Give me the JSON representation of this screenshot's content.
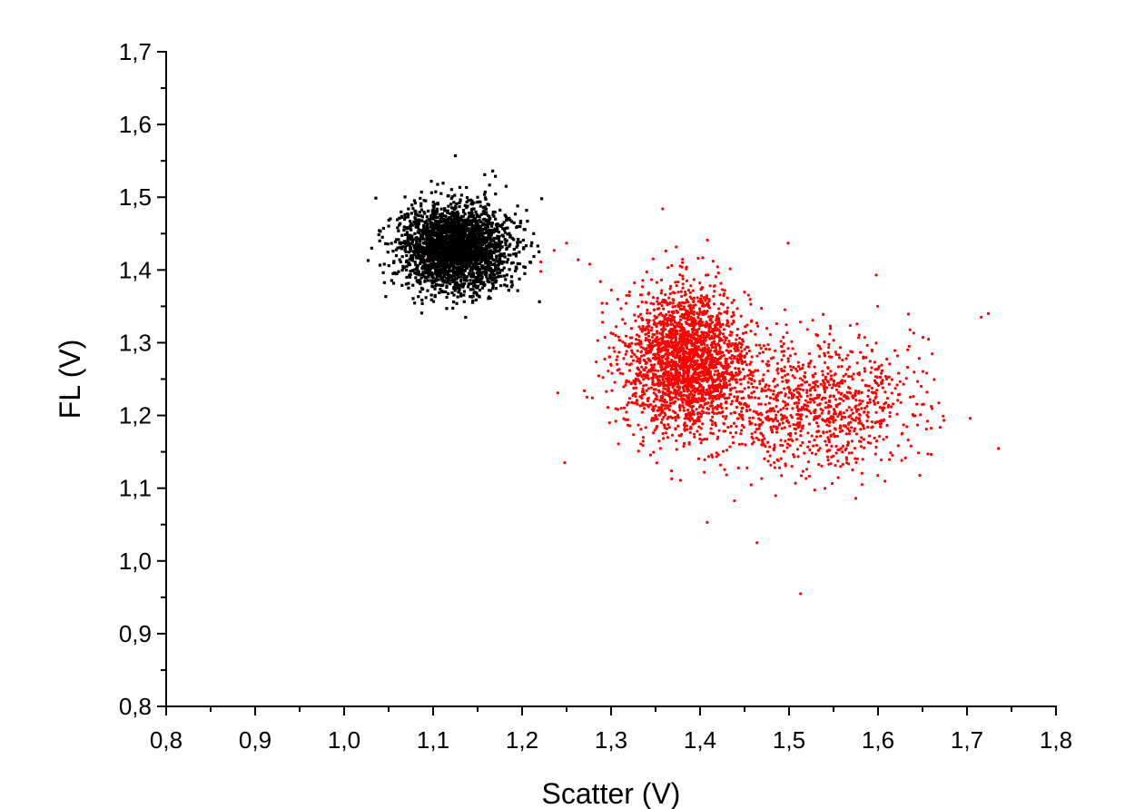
{
  "chart_data": {
    "type": "scatter",
    "title": "",
    "xlabel": "Scatter (V)",
    "ylabel": "FL (V)",
    "xlim": [
      0.8,
      1.8
    ],
    "ylim": [
      0.8,
      1.7
    ],
    "x_major_ticks": [
      0.8,
      0.9,
      1.0,
      1.1,
      1.2,
      1.3,
      1.4,
      1.5,
      1.6,
      1.7,
      1.8
    ],
    "x_tick_labels": [
      "0,8",
      "0,9",
      "1,0",
      "1,1",
      "1,2",
      "1,3",
      "1,4",
      "1,5",
      "1,6",
      "1,7",
      "1,8"
    ],
    "y_major_ticks": [
      0.8,
      0.9,
      1.0,
      1.1,
      1.2,
      1.3,
      1.4,
      1.5,
      1.6,
      1.7
    ],
    "y_tick_labels": [
      "0,8",
      "0,9",
      "1,0",
      "1,1",
      "1,2",
      "1,3",
      "1,4",
      "1,5",
      "1,6",
      "1,7"
    ],
    "grid": false,
    "legend": "none",
    "series": [
      {
        "color": "#000000",
        "marker": "square",
        "points": [
          [
            1.125,
            1.557
          ],
          [
            1.167,
            1.536
          ],
          [
            1.158,
            1.531
          ],
          [
            1.098,
            1.522
          ],
          [
            1.182,
            1.515
          ],
          [
            1.222,
            1.498
          ],
          [
            1.08,
            1.492
          ],
          [
            1.062,
            1.471
          ],
          [
            1.043,
            1.445
          ],
          [
            1.031,
            1.43
          ],
          [
            1.027,
            1.413
          ],
          [
            1.055,
            1.395
          ],
          [
            1.092,
            1.362
          ],
          [
            1.11,
            1.371
          ],
          [
            1.123,
            1.356
          ],
          [
            1.145,
            1.364
          ],
          [
            1.183,
            1.378
          ],
          [
            1.203,
            1.395
          ],
          [
            1.219,
            1.425
          ],
          [
            1.213,
            1.45
          ],
          [
            1.206,
            1.467
          ],
          [
            1.205,
            1.482
          ],
          [
            1.195,
            1.488
          ],
          [
            1.15,
            1.5
          ],
          [
            1.109,
            1.505
          ],
          [
            1.07,
            1.457
          ],
          [
            1.04,
            1.44
          ],
          [
            1.07,
            1.4
          ],
          [
            1.14,
            1.38
          ],
          [
            1.19,
            1.41
          ]
        ],
        "cluster": {
          "center": [
            1.125,
            1.43
          ],
          "sd": [
            0.03,
            0.028
          ],
          "n": 2600
        }
      },
      {
        "color": "#ff0000",
        "marker": "circle",
        "points": [
          [
            1.358,
            1.484
          ],
          [
            1.499,
            1.437
          ],
          [
            1.598,
            1.393
          ],
          [
            1.236,
            1.427
          ],
          [
            1.25,
            1.437
          ],
          [
            1.263,
            1.414
          ],
          [
            1.276,
            1.408
          ],
          [
            1.288,
            1.384
          ],
          [
            1.221,
            1.411
          ],
          [
            1.221,
            1.398
          ],
          [
            1.285,
            1.303
          ],
          [
            1.27,
            1.234
          ],
          [
            1.716,
            1.335
          ],
          [
            1.724,
            1.34
          ],
          [
            1.655,
            1.232
          ],
          [
            1.656,
            1.147
          ],
          [
            1.575,
            1.086
          ],
          [
            1.408,
            1.053
          ],
          [
            1.464,
            1.025
          ],
          [
            1.513,
            0.955
          ],
          [
            1.093,
            1.415
          ],
          [
            1.167,
            1.415
          ]
        ],
        "cluster_main": {
          "center": [
            1.385,
            1.275
          ],
          "sd": [
            0.035,
            0.05
          ],
          "n": 2300
        },
        "cluster_tail": {
          "center": [
            1.53,
            1.215
          ],
          "sd": [
            0.055,
            0.045
          ],
          "n": 1000
        }
      }
    ]
  }
}
